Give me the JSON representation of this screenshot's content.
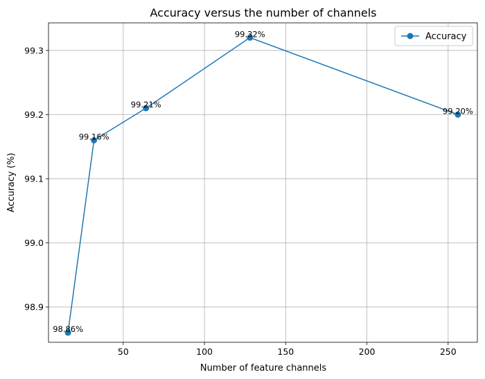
{
  "chart_data": {
    "type": "line",
    "title": "Accuracy versus the number of channels",
    "xlabel": "Number of feature channels",
    "ylabel": "Accuracy (%)",
    "xlim": [
      4,
      268
    ],
    "ylim": [
      98.845,
      99.343
    ],
    "xticks": [
      50,
      100,
      150,
      200,
      250
    ],
    "yticks": [
      98.9,
      99.0,
      99.1,
      99.2,
      99.3
    ],
    "xtick_labels": [
      "50",
      "100",
      "150",
      "200",
      "250"
    ],
    "ytick_labels": [
      "98.9",
      "99.0",
      "99.1",
      "99.2",
      "99.3"
    ],
    "grid": true,
    "legend_position": "top-right",
    "series": [
      {
        "name": "Accuracy",
        "color": "#1f77b4",
        "marker": "circle",
        "x": [
          16,
          32,
          64,
          128,
          256
        ],
        "y": [
          98.86,
          99.16,
          99.21,
          99.32,
          99.2
        ],
        "labels": [
          "98.86%",
          "99.16%",
          "99.21%",
          "99.32%",
          "99.20%"
        ]
      }
    ]
  }
}
